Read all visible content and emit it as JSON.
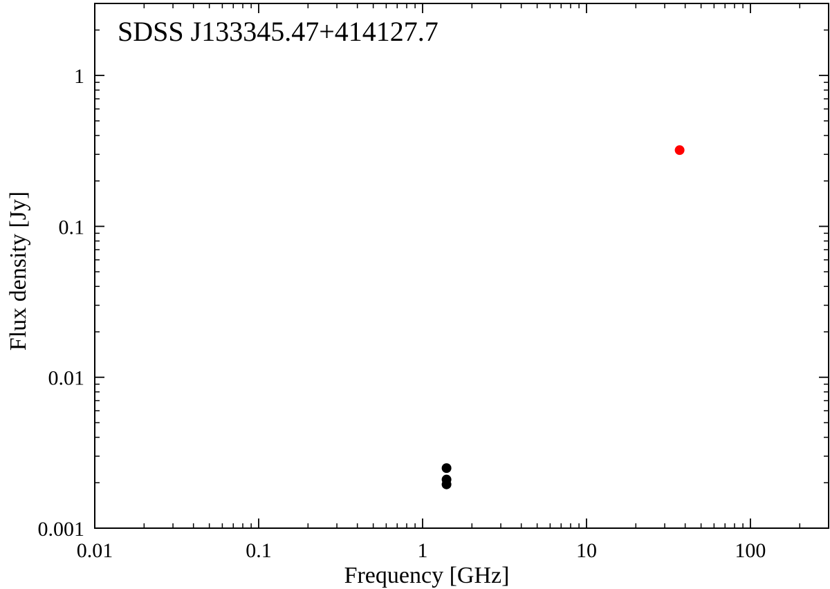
{
  "chart_data": {
    "type": "scatter",
    "title": "SDSS J133345.47+414127.7",
    "xlabel": "Frequency [GHz]",
    "ylabel": "Flux density [Jy]",
    "x_scale": "log",
    "y_scale": "log",
    "xlim": [
      0.01,
      300
    ],
    "ylim": [
      0.001,
      3
    ],
    "x_ticks": [
      {
        "value": 0.01,
        "label": "0.01"
      },
      {
        "value": 0.1,
        "label": "0.1"
      },
      {
        "value": 1,
        "label": "1"
      },
      {
        "value": 10,
        "label": "10"
      },
      {
        "value": 100,
        "label": "100"
      }
    ],
    "y_ticks": [
      {
        "value": 0.001,
        "label": "0.001"
      },
      {
        "value": 0.01,
        "label": "0.01"
      },
      {
        "value": 0.1,
        "label": "0.1"
      },
      {
        "value": 1,
        "label": "1"
      }
    ],
    "grid": false,
    "series": [
      {
        "color": "#000000",
        "points": [
          {
            "x": 1.4,
            "y": 0.0025
          },
          {
            "x": 1.4,
            "y": 0.0021
          },
          {
            "x": 1.4,
            "y": 0.00195
          }
        ]
      },
      {
        "color": "#ff0000",
        "points": [
          {
            "x": 37,
            "y": 0.32
          }
        ]
      }
    ]
  }
}
